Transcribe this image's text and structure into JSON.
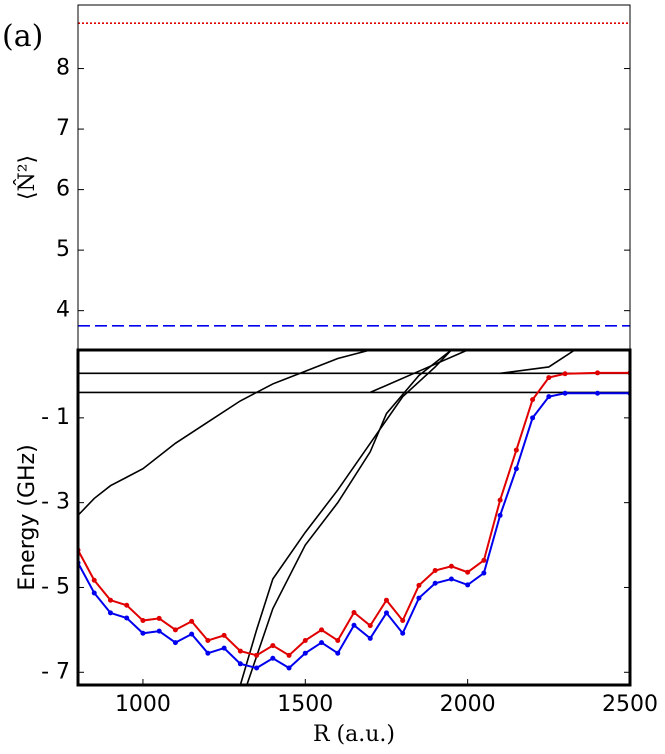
{
  "chart_data": [
    {
      "type": "line",
      "panel_label": "(a)",
      "y_label": "⟨N̂²⟩",
      "xlim": [
        800,
        2500
      ],
      "ylim": [
        3.35,
        9.05
      ],
      "yticks": [
        4,
        5,
        6,
        7,
        8
      ],
      "series": [
        {
          "color": "#e00000",
          "dash": "dotted",
          "x": [
            800,
            2500
          ],
          "values": [
            8.75,
            8.75
          ]
        },
        {
          "color": "#0000ee",
          "dash": "dashed",
          "x": [
            800,
            2500
          ],
          "values": [
            3.75,
            3.75
          ]
        }
      ]
    },
    {
      "type": "line",
      "y_label": "Energy (GHz)",
      "x_label": "R (a.u.)",
      "xlim": [
        800,
        2500
      ],
      "xticks": [
        1000,
        1500,
        2000,
        2500
      ],
      "ylim": [
        -7.3,
        0.6
      ],
      "yticks": [
        {
          "value": -1,
          "label": "- 1"
        },
        {
          "value": -3,
          "label": "- 3"
        },
        {
          "value": -5,
          "label": "- 5"
        },
        {
          "value": -7,
          "label": "- 7"
        }
      ],
      "series": [
        {
          "color": "#000000",
          "x": [
            800,
            1200,
            1600,
            2000,
            2500
          ],
          "values": [
            0.05,
            0.05,
            0.05,
            0.05,
            0.05
          ]
        },
        {
          "color": "#000000",
          "x": [
            800,
            1200,
            1600,
            2000,
            2500
          ],
          "values": [
            -0.4,
            -0.4,
            -0.4,
            -0.4,
            -0.4
          ]
        },
        {
          "color": "#000000",
          "x": [
            800,
            850,
            900,
            1000,
            1100,
            1200,
            1300,
            1400,
            1500,
            1600,
            1700
          ],
          "values": [
            -3.3,
            -2.9,
            -2.6,
            -2.2,
            -1.6,
            -1.1,
            -0.6,
            -0.2,
            0.1,
            0.4,
            0.6
          ]
        },
        {
          "color": "#000000",
          "x": [
            1300,
            1350,
            1400,
            1500,
            1600,
            1700,
            1800,
            1900,
            1950
          ],
          "values": [
            -7.3,
            -6.0,
            -4.8,
            -3.7,
            -2.7,
            -1.6,
            -0.5,
            0.2,
            0.6
          ]
        },
        {
          "color": "#000000",
          "x": [
            1320,
            1400,
            1500,
            1600,
            1700,
            1750,
            1850,
            1950
          ],
          "values": [
            -7.3,
            -5.5,
            -4.0,
            -3.0,
            -1.8,
            -0.9,
            0.0,
            0.6
          ]
        },
        {
          "color": "#000000",
          "x": [
            2100,
            2250,
            2330
          ],
          "values": [
            0.05,
            0.2,
            0.6
          ]
        },
        {
          "color": "#000000",
          "x": [
            1700,
            1850,
            2000
          ],
          "values": [
            -0.4,
            0.1,
            0.6
          ]
        },
        {
          "color": "#0000ee",
          "markers": true,
          "x": [
            800,
            850,
            900,
            950,
            1000,
            1050,
            1100,
            1150,
            1200,
            1250,
            1300,
            1350,
            1400,
            1450,
            1500,
            1550,
            1600,
            1650,
            1700,
            1750,
            1800,
            1850,
            1900,
            1950,
            2000,
            2050,
            2100,
            2150,
            2200,
            2250,
            2300,
            2400,
            2500
          ],
          "values": [
            -4.42,
            -5.13,
            -5.6,
            -5.72,
            -6.08,
            -6.03,
            -6.3,
            -6.1,
            -6.55,
            -6.43,
            -6.8,
            -6.9,
            -6.67,
            -6.9,
            -6.55,
            -6.3,
            -6.55,
            -5.89,
            -6.2,
            -5.6,
            -6.08,
            -5.25,
            -4.9,
            -4.8,
            -4.94,
            -4.66,
            -3.3,
            -2.2,
            -1.0,
            -0.5,
            -0.42,
            -0.42,
            -0.42
          ]
        },
        {
          "color": "#e00000",
          "markers": true,
          "x": [
            800,
            850,
            900,
            950,
            1000,
            1050,
            1100,
            1150,
            1200,
            1250,
            1300,
            1350,
            1400,
            1450,
            1500,
            1550,
            1600,
            1650,
            1700,
            1750,
            1800,
            1850,
            1900,
            1950,
            2000,
            2050,
            2100,
            2150,
            2200,
            2250,
            2300,
            2400,
            2500
          ],
          "values": [
            -4.12,
            -4.83,
            -5.3,
            -5.42,
            -5.78,
            -5.73,
            -6.0,
            -5.8,
            -6.25,
            -6.13,
            -6.5,
            -6.6,
            -6.37,
            -6.6,
            -6.25,
            -6.0,
            -6.25,
            -5.59,
            -5.9,
            -5.3,
            -5.78,
            -4.95,
            -4.6,
            -4.5,
            -4.64,
            -4.36,
            -2.94,
            -1.76,
            -0.57,
            -0.05,
            0.04,
            0.06,
            0.06
          ]
        }
      ]
    }
  ]
}
